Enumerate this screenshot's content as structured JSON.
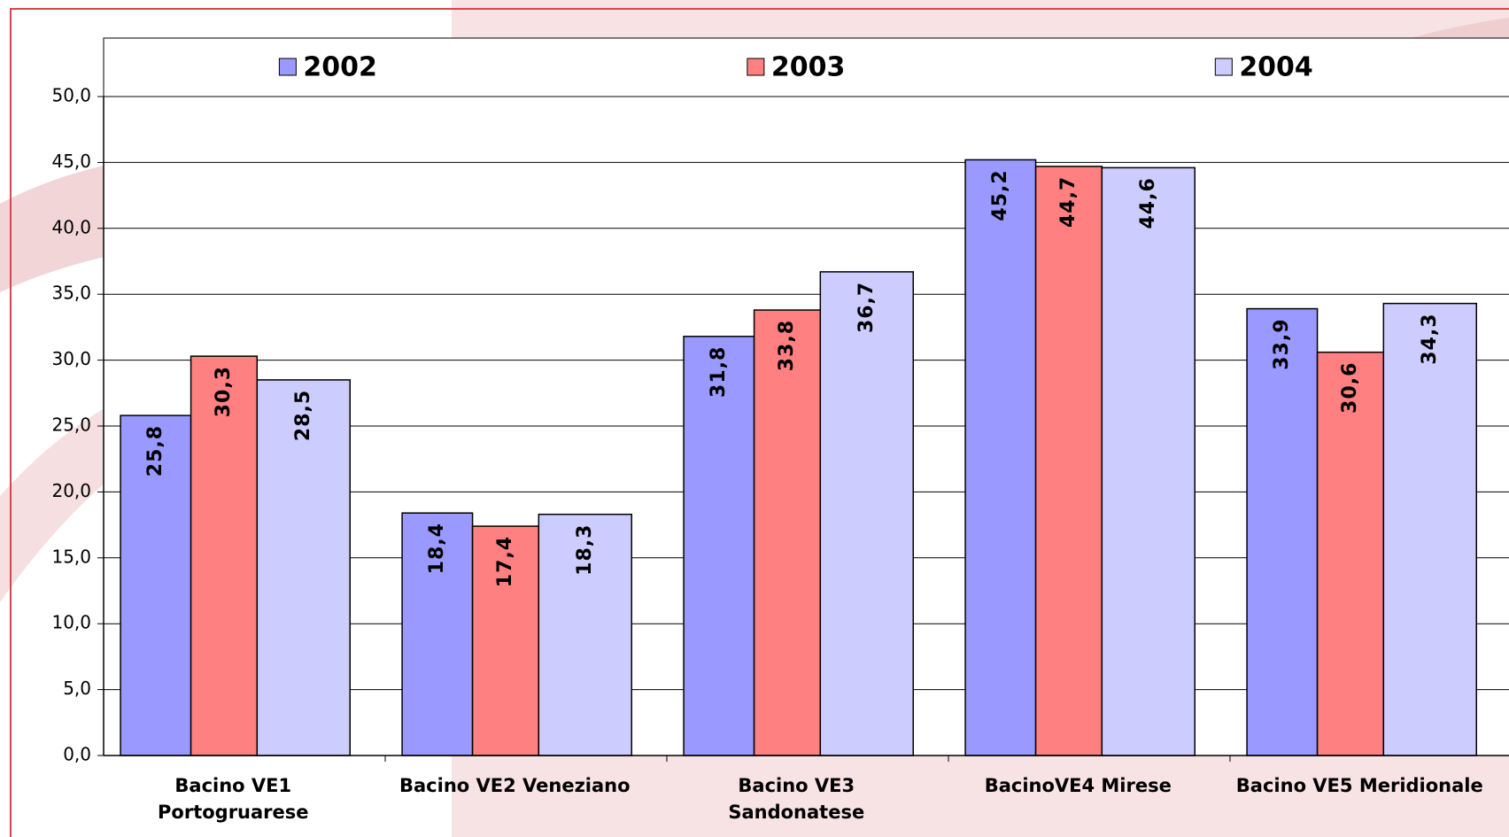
{
  "chart_data": {
    "type": "bar",
    "categories": [
      "Bacino VE1\nPortogruarese",
      "Bacino VE2 Veneziano",
      "Bacino VE3\nSandonatese",
      "BacinoVE4 Mirese",
      "Bacino VE5 Meridionale"
    ],
    "series": [
      {
        "name": "2002",
        "color": "#9999ff",
        "values": [
          25.8,
          18.4,
          31.8,
          45.2,
          33.9
        ],
        "value_labels": [
          "25,8",
          "18,4",
          "31,8",
          "45,2",
          "33,9"
        ]
      },
      {
        "name": "2003",
        "color": "#ff8080",
        "values": [
          30.3,
          17.4,
          33.8,
          44.7,
          30.6
        ],
        "value_labels": [
          "30,3",
          "17,4",
          "33,8",
          "44,7",
          "30,6"
        ]
      },
      {
        "name": "2004",
        "color": "#ccccff",
        "values": [
          28.5,
          18.3,
          36.7,
          44.6,
          34.3
        ],
        "value_labels": [
          "28,5",
          "18,3",
          "36,7",
          "44,6",
          "34,3"
        ]
      }
    ],
    "ylim": [
      0,
      50
    ],
    "yticks": [
      {
        "value": 0,
        "label": "0,0"
      },
      {
        "value": 5,
        "label": "5,0"
      },
      {
        "value": 10,
        "label": "10,0"
      },
      {
        "value": 15,
        "label": "15,0"
      },
      {
        "value": 20,
        "label": "20,0"
      },
      {
        "value": 25,
        "label": "25,0"
      },
      {
        "value": 30,
        "label": "30,0"
      },
      {
        "value": 35,
        "label": "35,0"
      },
      {
        "value": 40,
        "label": "40,0"
      },
      {
        "value": 45,
        "label": "45,0"
      },
      {
        "value": 50,
        "label": "50,0"
      }
    ],
    "grid": true,
    "legend": "top"
  }
}
